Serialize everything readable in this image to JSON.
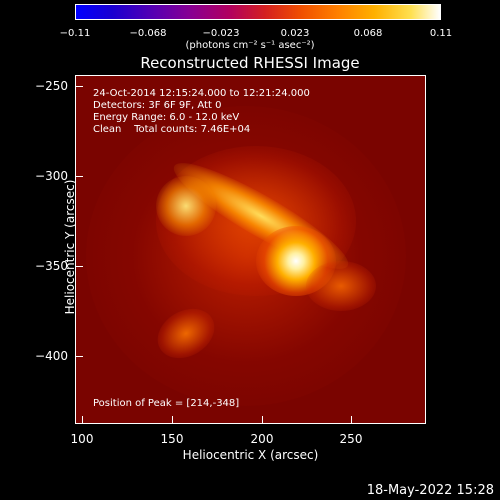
{
  "colorbar": {
    "ticks": [
      "−0.11",
      "−0.068",
      "−0.023",
      "0.023",
      "0.068",
      "0.11"
    ],
    "units": "(photons cm⁻² s⁻¹ asec⁻²)"
  },
  "title": "Reconstructed RHESSI Image",
  "annotations": {
    "line1": "24-Oct-2014 12:15:24.000 to 12:21:24.000",
    "line2": "Detectors: 3F 6F 9F, Att 0",
    "line3": "Energy Range: 6.0 - 12.0 keV",
    "line4": "Clean    Total counts: 7.46E+04",
    "peak": "Position of Peak = [214,-348]"
  },
  "axes": {
    "xlabel": "Heliocentric X (arcsec)",
    "ylabel": "Heliocentric Y (arcsec)",
    "xticks": [
      "100",
      "150",
      "200",
      "250"
    ],
    "yticks": [
      "−250",
      "−300",
      "−350",
      "−400"
    ]
  },
  "footer_date": "18-May-2022 15:28"
}
